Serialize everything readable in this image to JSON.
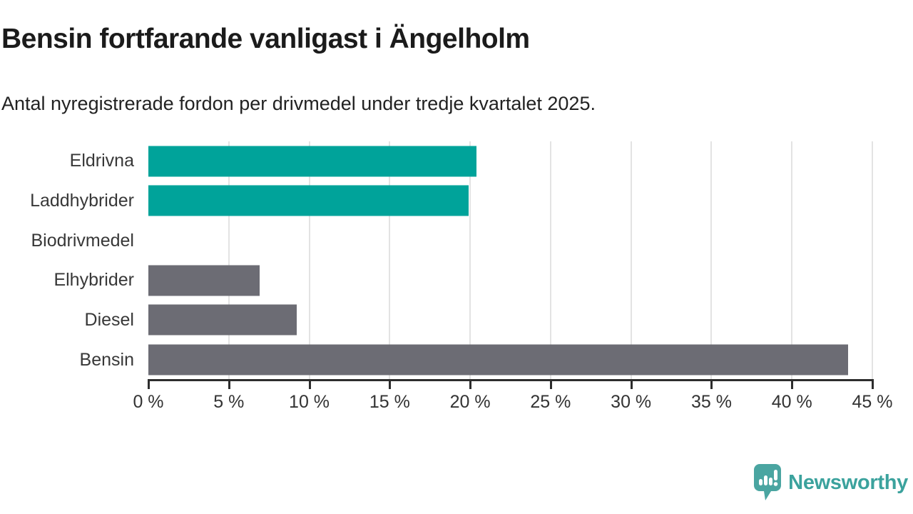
{
  "title": "Bensin fortfarande vanligast i Ängelholm",
  "subtitle": "Antal nyregistrerade fordon per drivmedel under tredje kvartalet 2025.",
  "branding": {
    "name": "Newsworthy",
    "logo_color": "#4aa5a1",
    "text_color": "#3ba29d"
  },
  "colors": {
    "highlight_bar": "#00a39a",
    "default_bar": "#6c6c74",
    "gridline": "#e3e3e3",
    "axis": "#2d2d2d",
    "label_text": "#383838"
  },
  "chart_data": {
    "type": "bar",
    "orientation": "horizontal",
    "title": "Bensin fortfarande vanligast i Ängelholm",
    "subtitle": "Antal nyregistrerade fordon per drivmedel under tredje kvartalet 2025.",
    "xlabel": "",
    "ylabel": "",
    "unit": "%",
    "categories": [
      "Eldrivna",
      "Laddhybrider",
      "Biodrivmedel",
      "Elhybrider",
      "Diesel",
      "Bensin"
    ],
    "values": [
      20.4,
      19.9,
      0,
      6.9,
      9.2,
      43.5
    ],
    "bar_colors": [
      "#00a39a",
      "#00a39a",
      "#6c6c74",
      "#6c6c74",
      "#6c6c74",
      "#6c6c74"
    ],
    "xlim": [
      0,
      45
    ],
    "x_ticks": [
      0,
      5,
      10,
      15,
      20,
      25,
      30,
      35,
      40,
      45
    ],
    "x_tick_labels": [
      "0 %",
      "5 %",
      "10 %",
      "15 %",
      "20 %",
      "25 %",
      "30 %",
      "35 %",
      "40 %",
      "45 %"
    ],
    "grid": true,
    "legend": "none"
  }
}
